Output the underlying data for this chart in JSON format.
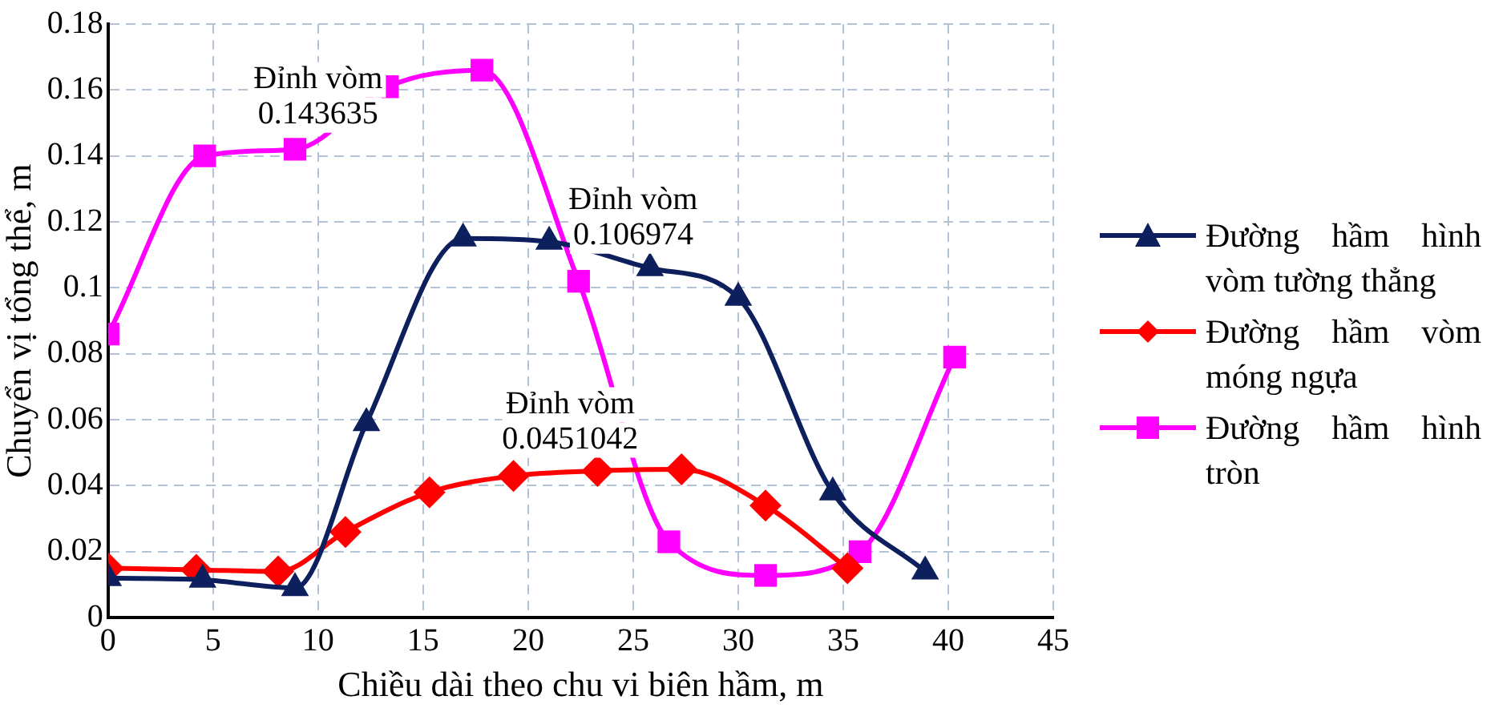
{
  "chart_data": {
    "type": "line",
    "xlabel": "Chiều dài theo chu vi biên hầm, m",
    "ylabel": "Chuyển vị tổng thể, m",
    "xlim": [
      0,
      45
    ],
    "xticks": [
      0,
      5,
      10,
      15,
      20,
      25,
      30,
      35,
      40,
      45
    ],
    "ylim": [
      0,
      0.18
    ],
    "yticks": [
      0,
      0.02,
      0.04,
      0.06,
      0.08,
      0.1,
      0.12,
      0.14,
      0.16,
      0.18
    ],
    "grid": true,
    "legend": "right",
    "series": [
      {
        "name": "Đường hầm hình vòm tường thẳng",
        "color": "#0d1f5c",
        "marker": "triangle",
        "x": [
          0,
          4.5,
          8.9,
          12.3,
          16.9,
          21,
          25.8,
          30,
          34.5,
          38.9
        ],
        "values": [
          0.012,
          0.0115,
          0.009,
          0.059,
          0.115,
          0.114,
          0.106,
          0.097,
          0.038,
          0.014
        ]
      },
      {
        "name": "Đường hầm vòm móng ngựa",
        "color": "#ff0000",
        "marker": "diamond",
        "x": [
          0,
          4.2,
          8.1,
          11.3,
          15.3,
          19.3,
          23.3,
          27.3,
          31.3,
          35.2
        ],
        "values": [
          0.015,
          0.0145,
          0.014,
          0.026,
          0.038,
          0.043,
          0.0445,
          0.045,
          0.034,
          0.015
        ]
      },
      {
        "name": "Đường hầm hình tròn",
        "color": "#ff00ff",
        "marker": "square",
        "x": [
          0,
          4.6,
          8.9,
          13.3,
          17.8,
          22.4,
          26.7,
          31.3,
          35.8,
          40.3
        ],
        "values": [
          0.086,
          0.14,
          0.142,
          0.161,
          0.166,
          0.102,
          0.023,
          0.0128,
          0.02,
          0.079
        ]
      }
    ],
    "annotations": [
      {
        "text": "Đỉnh vòm\n0.143635",
        "x": 10,
        "y": 0.143635
      },
      {
        "text": "Đỉnh vòm\n0.106974",
        "x": 25,
        "y": 0.106974
      },
      {
        "text": "Đỉnh vòm\n0.0451042",
        "x": 22,
        "y": 0.0451042
      }
    ]
  }
}
